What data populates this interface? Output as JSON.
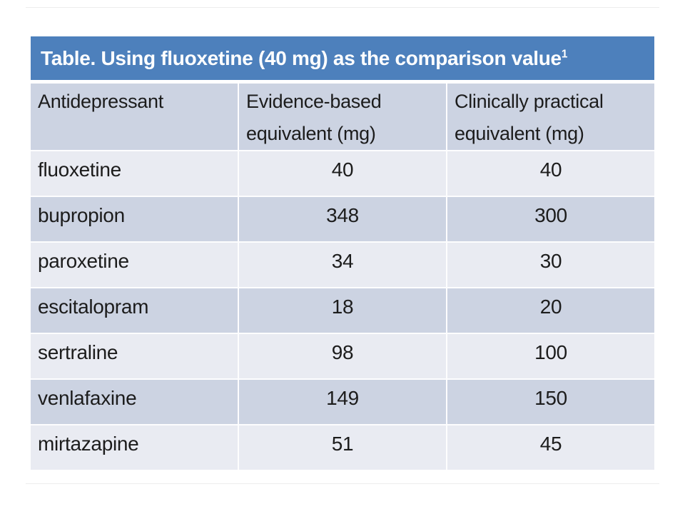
{
  "table": {
    "title": "Table. Using fluoxetine (40 mg) as the comparison value",
    "title_superscript": "1",
    "columns": [
      "Antidepressant",
      "Evidence-based\nequivalent (mg)",
      "Clinically practical\nequivalent (mg)"
    ],
    "rows": [
      {
        "antidepressant": "fluoxetine",
        "evidence_based": 40,
        "clinically_practical": 40
      },
      {
        "antidepressant": "bupropion",
        "evidence_based": 348,
        "clinically_practical": 300
      },
      {
        "antidepressant": "paroxetine",
        "evidence_based": 34,
        "clinically_practical": 30
      },
      {
        "antidepressant": "escitalopram",
        "evidence_based": 18,
        "clinically_practical": 20
      },
      {
        "antidepressant": "sertraline",
        "evidence_based": 98,
        "clinically_practical": 100
      },
      {
        "antidepressant": "venlafaxine",
        "evidence_based": 149,
        "clinically_practical": 150
      },
      {
        "antidepressant": "mirtazapine",
        "evidence_based": 51,
        "clinically_practical": 45
      }
    ],
    "colors": {
      "title_bg": "#4d80bc",
      "title_text": "#ffffff",
      "header_bg": "#ccd3e2",
      "row_light_bg": "#e9ebf2",
      "row_dark_bg": "#ccd3e2",
      "body_text": "#1c1c1c",
      "divider": "#fdfdfe",
      "slide_bg": "#ffffff"
    }
  }
}
